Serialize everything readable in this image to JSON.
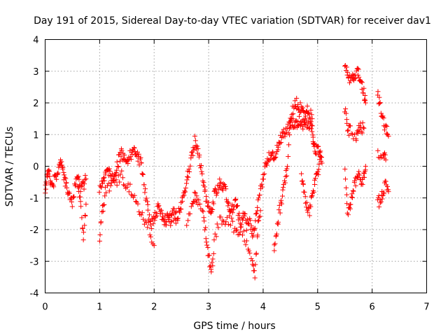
{
  "chart_data": {
    "type": "scatter",
    "title": "Day 191 of 2015, Sidereal Day-to-day VTEC variation (SDTVAR) for receiver dav1",
    "xlabel": "GPS time / hours",
    "ylabel": "SDTVAR / TECUs",
    "xlim": [
      0,
      7
    ],
    "ylim": [
      -4,
      4
    ],
    "xticks": [
      "0",
      "1",
      "2",
      "3",
      "4",
      "5",
      "6",
      "7"
    ],
    "yticks": [
      "-4",
      "-3",
      "-2",
      "-1",
      "0",
      "1",
      "2",
      "3",
      "4"
    ],
    "grid": true,
    "marker": "+",
    "color": "#ff0000",
    "series_trend": [
      [
        0.0,
        -0.8
      ],
      [
        0.03,
        -0.3
      ],
      [
        0.06,
        -0.2
      ],
      [
        0.1,
        -0.45
      ],
      [
        0.15,
        -0.6
      ],
      [
        0.2,
        -0.3
      ],
      [
        0.25,
        0.0
      ],
      [
        0.28,
        0.2
      ],
      [
        0.32,
        -0.1
      ],
      [
        0.36,
        -0.5
      ],
      [
        0.4,
        -0.6
      ],
      [
        0.45,
        -0.9
      ],
      [
        0.5,
        -1.2
      ],
      [
        0.55,
        -0.6
      ],
      [
        0.6,
        -0.3
      ],
      [
        0.65,
        -0.7
      ],
      [
        0.7,
        -0.6
      ],
      [
        0.75,
        -0.4
      ],
      [
        1.0,
        -0.8
      ],
      [
        1.05,
        -0.5
      ],
      [
        1.1,
        -0.3
      ],
      [
        1.15,
        -0.1
      ],
      [
        1.2,
        -0.25
      ],
      [
        1.25,
        -0.4
      ],
      [
        1.3,
        -0.1
      ],
      [
        1.35,
        0.2
      ],
      [
        1.4,
        0.4
      ],
      [
        1.45,
        0.3
      ],
      [
        1.5,
        0.1
      ],
      [
        1.55,
        0.3
      ],
      [
        1.6,
        0.45
      ],
      [
        1.65,
        0.5
      ],
      [
        1.7,
        0.3
      ],
      [
        1.75,
        0.1
      ],
      [
        1.8,
        -0.3
      ],
      [
        1.85,
        -0.9
      ],
      [
        1.9,
        -1.5
      ],
      [
        1.95,
        -1.8
      ],
      [
        2.0,
        -1.7
      ],
      [
        2.05,
        -1.4
      ],
      [
        2.1,
        -1.3
      ],
      [
        2.15,
        -1.6
      ],
      [
        2.2,
        -1.8
      ],
      [
        2.25,
        -1.5
      ],
      [
        2.3,
        -1.7
      ],
      [
        2.35,
        -1.4
      ],
      [
        2.4,
        -1.6
      ],
      [
        2.45,
        -1.5
      ],
      [
        2.5,
        -1.2
      ],
      [
        2.55,
        -0.8
      ],
      [
        2.6,
        -0.4
      ],
      [
        2.65,
        -0.1
      ],
      [
        2.7,
        0.4
      ],
      [
        2.75,
        0.8
      ],
      [
        2.8,
        0.5
      ],
      [
        2.85,
        0.0
      ],
      [
        2.9,
        -0.5
      ],
      [
        2.95,
        -1.0
      ],
      [
        3.0,
        -1.3
      ],
      [
        3.05,
        -1.5
      ],
      [
        3.1,
        -0.9
      ],
      [
        3.15,
        -0.7
      ],
      [
        3.2,
        -0.5
      ],
      [
        3.25,
        -0.8
      ],
      [
        3.3,
        -0.6
      ],
      [
        3.35,
        -1.2
      ],
      [
        3.4,
        -1.5
      ],
      [
        3.45,
        -1.3
      ],
      [
        3.5,
        -1.0
      ],
      [
        3.55,
        -1.6
      ],
      [
        3.6,
        -1.8
      ],
      [
        3.65,
        -1.5
      ],
      [
        3.7,
        -1.9
      ],
      [
        3.75,
        -1.6
      ],
      [
        3.8,
        -2.2
      ],
      [
        3.85,
        -1.8
      ],
      [
        3.9,
        -1.3
      ],
      [
        3.95,
        -0.8
      ],
      [
        4.0,
        -0.3
      ],
      [
        4.05,
        0.0
      ],
      [
        4.1,
        0.3
      ],
      [
        4.15,
        0.4
      ],
      [
        4.2,
        0.3
      ],
      [
        4.25,
        0.5
      ],
      [
        4.3,
        0.8
      ],
      [
        4.35,
        1.0
      ],
      [
        4.4,
        1.1
      ],
      [
        4.45,
        1.2
      ],
      [
        4.5,
        1.3
      ],
      [
        4.55,
        1.4
      ],
      [
        4.6,
        1.35
      ],
      [
        4.65,
        1.45
      ],
      [
        4.7,
        1.4
      ],
      [
        4.75,
        1.3
      ],
      [
        4.8,
        1.35
      ],
      [
        4.85,
        1.3
      ],
      [
        4.9,
        1.25
      ],
      [
        4.92,
        0.6
      ],
      [
        4.95,
        0.55
      ],
      [
        5.0,
        0.5
      ],
      [
        5.05,
        0.4
      ],
      [
        5.08,
        0.1
      ],
      [
        5.5,
        3.3
      ],
      [
        5.55,
        2.9
      ],
      [
        5.6,
        2.7
      ],
      [
        5.65,
        2.8
      ],
      [
        5.7,
        2.9
      ],
      [
        5.75,
        2.95
      ],
      [
        5.8,
        2.6
      ],
      [
        5.85,
        2.3
      ],
      [
        5.88,
        2.0
      ],
      [
        6.1,
        2.3
      ],
      [
        6.15,
        1.9
      ],
      [
        6.2,
        1.5
      ],
      [
        6.25,
        1.2
      ],
      [
        6.3,
        0.95
      ]
    ],
    "series_lower": [
      [
        0.6,
        -0.6
      ],
      [
        0.65,
        -1.0
      ],
      [
        0.7,
        -2.4
      ],
      [
        0.75,
        -1.2
      ],
      [
        1.0,
        -2.2
      ],
      [
        1.05,
        -1.4
      ],
      [
        1.1,
        -0.8
      ],
      [
        1.2,
        -0.6
      ],
      [
        1.3,
        -0.5
      ],
      [
        1.4,
        -0.3
      ],
      [
        1.5,
        -0.6
      ],
      [
        1.6,
        -0.8
      ],
      [
        1.7,
        -1.2
      ],
      [
        1.8,
        -1.6
      ],
      [
        1.9,
        -1.9
      ],
      [
        2.0,
        -2.5
      ],
      [
        2.2,
        -1.5
      ],
      [
        2.4,
        -1.8
      ],
      [
        2.6,
        -1.7
      ],
      [
        2.7,
        -1.2
      ],
      [
        2.75,
        -0.9
      ],
      [
        2.8,
        -1.1
      ],
      [
        2.9,
        -1.6
      ],
      [
        2.95,
        -2.2
      ],
      [
        3.0,
        -2.8
      ],
      [
        3.05,
        -3.4
      ],
      [
        3.1,
        -2.4
      ],
      [
        3.2,
        -1.6
      ],
      [
        3.3,
        -1.8
      ],
      [
        3.4,
        -1.7
      ],
      [
        3.5,
        -2.2
      ],
      [
        3.6,
        -2.0
      ],
      [
        3.7,
        -2.5
      ],
      [
        3.8,
        -3.0
      ],
      [
        3.85,
        -3.5
      ],
      [
        3.9,
        -2.0
      ],
      [
        3.95,
        -1.4
      ],
      [
        4.2,
        -2.8
      ],
      [
        4.25,
        -2.0
      ],
      [
        4.3,
        -1.4
      ],
      [
        4.35,
        -1.0
      ],
      [
        4.4,
        -0.5
      ],
      [
        4.45,
        0.0
      ],
      [
        4.5,
        1.5
      ],
      [
        4.55,
        1.8
      ],
      [
        4.6,
        2.0
      ],
      [
        4.65,
        1.9
      ],
      [
        4.7,
        1.8
      ],
      [
        4.75,
        1.6
      ],
      [
        4.8,
        1.8
      ],
      [
        4.85,
        1.7
      ],
      [
        4.9,
        1.5
      ],
      [
        4.7,
        -0.4
      ],
      [
        4.75,
        -0.8
      ],
      [
        4.8,
        -1.2
      ],
      [
        4.85,
        -1.5
      ],
      [
        4.9,
        -0.9
      ],
      [
        4.95,
        -0.5
      ],
      [
        5.0,
        -0.2
      ],
      [
        5.05,
        0.3
      ],
      [
        5.5,
        -0.2
      ],
      [
        5.55,
        -1.5
      ],
      [
        5.6,
        -1.3
      ],
      [
        5.65,
        -0.7
      ],
      [
        5.7,
        -0.5
      ],
      [
        5.75,
        -0.2
      ],
      [
        5.8,
        -0.6
      ],
      [
        5.85,
        -0.3
      ],
      [
        5.88,
        0.0
      ],
      [
        5.5,
        1.8
      ],
      [
        5.55,
        1.2
      ],
      [
        5.6,
        1.1
      ],
      [
        5.7,
        0.8
      ],
      [
        5.75,
        1.3
      ],
      [
        5.8,
        1.2
      ],
      [
        5.85,
        1.2
      ],
      [
        6.1,
        -1.0
      ],
      [
        6.15,
        -1.2
      ],
      [
        6.2,
        -0.8
      ],
      [
        6.25,
        -0.6
      ],
      [
        6.3,
        -0.8
      ],
      [
        6.1,
        0.45
      ],
      [
        6.2,
        0.4
      ],
      [
        6.25,
        0.2
      ]
    ]
  }
}
